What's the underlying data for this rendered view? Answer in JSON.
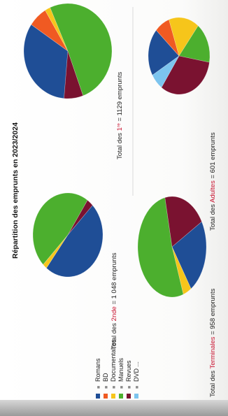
{
  "slide": {
    "title": "Répartition des emprunts  en 2023/2024"
  },
  "legend": {
    "items": [
      {
        "label": "Romans",
        "color": "#1f4e96"
      },
      {
        "label": "BD",
        "color": "#f05a22"
      },
      {
        "label": "Documentaires",
        "color": "#f6c51b"
      },
      {
        "label": "Manuels",
        "color": "#4caf2e"
      },
      {
        "label": "Revues",
        "color": "#7a1230"
      },
      {
        "label": "DVD ...",
        "color": "#7cc4ee"
      }
    ]
  },
  "chart_data": [
    {
      "type": "pie",
      "id": "seconde",
      "caption_prefix": "Total des ",
      "caption_group": "2nde",
      "caption_suffix": " = 1 048 emprunts",
      "slices": [
        {
          "label": "Romans",
          "value": 48
        },
        {
          "label": "BD",
          "value": 0
        },
        {
          "label": "Documentaires",
          "value": 2
        },
        {
          "label": "Manuels",
          "value": 47
        },
        {
          "label": "Revues",
          "value": 3
        },
        {
          "label": "DVD ...",
          "value": 0
        }
      ]
    },
    {
      "type": "pie",
      "id": "premiere",
      "caption_prefix": "Total des ",
      "caption_group": "1ʳᵉ",
      "caption_suffix": " = 1129 emprunts",
      "slices": [
        {
          "label": "Romans",
          "value": 33
        },
        {
          "label": "BD",
          "value": 7
        },
        {
          "label": "Documentaires",
          "value": 2
        },
        {
          "label": "Manuels",
          "value": 51
        },
        {
          "label": "Revues",
          "value": 7
        },
        {
          "label": "DVD ...",
          "value": 0
        }
      ]
    },
    {
      "type": "pie",
      "id": "terminale",
      "caption_prefix": "Total des ",
      "caption_group": "Terminales",
      "caption_suffix": " = 958 emprunts",
      "slices": [
        {
          "label": "Romans",
          "value": 24
        },
        {
          "label": "BD",
          "value": 0
        },
        {
          "label": "Documentaires",
          "value": 4
        },
        {
          "label": "Manuels",
          "value": 52
        },
        {
          "label": "Revues",
          "value": 20
        },
        {
          "label": "DVD ...",
          "value": 0
        }
      ]
    },
    {
      "type": "pie",
      "id": "adultes",
      "caption_prefix": "Total des ",
      "caption_group": "Adultes",
      "caption_suffix": " = 601 emprunts",
      "slices": [
        {
          "label": "Romans",
          "value": 20
        },
        {
          "label": "BD",
          "value": 8
        },
        {
          "label": "Documentaires",
          "value": 16
        },
        {
          "label": "Manuels",
          "value": 17
        },
        {
          "label": "Revues",
          "value": 32
        },
        {
          "label": "DVD ...",
          "value": 7
        }
      ]
    }
  ]
}
